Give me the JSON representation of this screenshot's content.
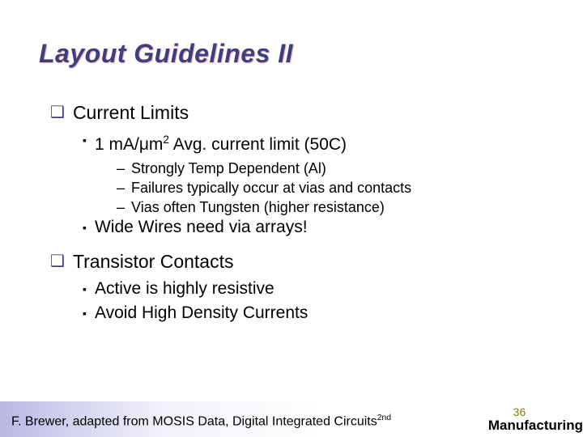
{
  "title": "Layout Guidelines II",
  "colors": {
    "title": "#3f3f7f",
    "bullet_square": "#3f3f7f",
    "text": "#000000",
    "slide_num": "#7f7f00",
    "footer_grad_start": "#b8b8e4",
    "footer_grad_end": "#ffffff",
    "background": "#ffffff"
  },
  "typography": {
    "title_fontsize": 32,
    "lvl1_fontsize": 23,
    "lvl2_fontsize": 21,
    "lvl3_fontsize": 18,
    "footer_fontsize": 16,
    "slide_num_fontsize": 14
  },
  "bullets": {
    "lvl1": "❑",
    "lvl2": "▪",
    "lvl3": "–"
  },
  "content": {
    "item1": {
      "heading": "Current Limits",
      "sub1_pre": "1 mA/",
      "sub1_unit": "μm",
      "sub1_exp": "2",
      "sub1_post": " Avg. current limit (50C)",
      "d1": "Strongly Temp Dependent (Al)",
      "d2": "Failures typically occur at vias and contacts",
      "d3": "Vias often Tungsten (higher resistance)",
      "sub2": "Wide Wires need via arrays!"
    },
    "item2": {
      "heading": "Transistor Contacts",
      "sub1": "Active is highly resistive",
      "sub2": "Avoid High Density Currents"
    }
  },
  "footer": {
    "attribution_pre": "F. Brewer, adapted from MOSIS Data, Digital Integrated Circuits",
    "attribution_sup": "2nd",
    "slide_number": "36",
    "section": "Manufacturing"
  }
}
